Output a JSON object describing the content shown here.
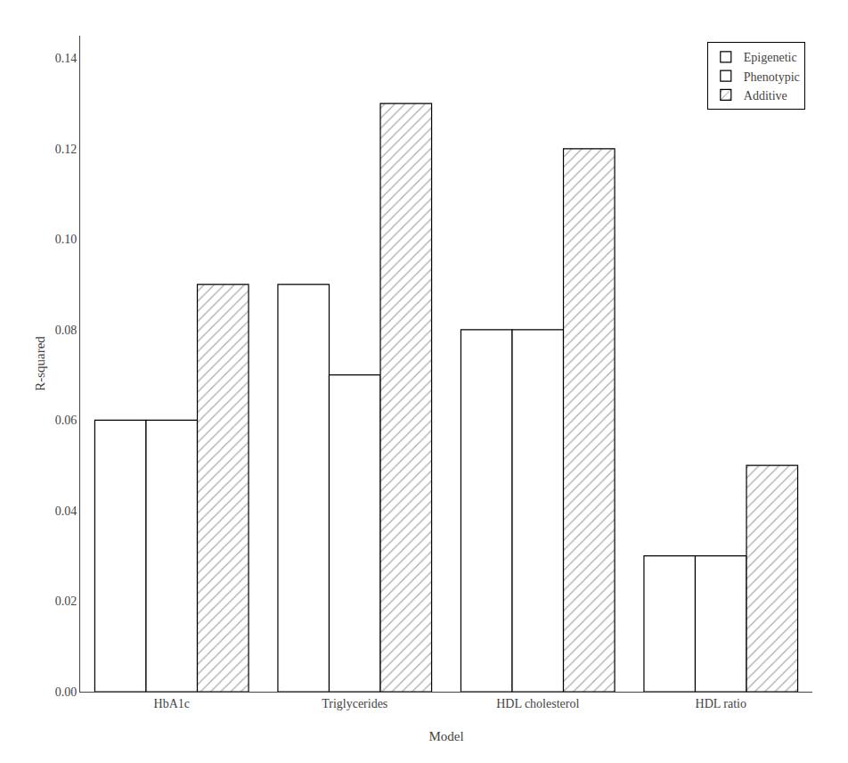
{
  "chart_data": {
    "type": "bar",
    "xlabel": "Model",
    "ylabel": "R-squared",
    "categories": [
      "HbA1c",
      "Triglycerides",
      "HDL cholesterol",
      "HDL ratio"
    ],
    "series": [
      {
        "name": "Epigenetic",
        "color": "#ffffff",
        "values": [
          0.06,
          0.09,
          0.08,
          0.03
        ]
      },
      {
        "name": "Phenotypic",
        "color": "#ffffff",
        "values": [
          0.06,
          0.07,
          0.08,
          0.03
        ]
      },
      {
        "name": "Additive",
        "color": "#ffffff",
        "values": [
          0.09,
          0.13,
          0.12,
          0.05
        ]
      }
    ],
    "ylim": [
      0.0,
      0.145
    ],
    "yticks": [
      {
        "value": 0.0,
        "label": "0.00"
      },
      0.02,
      0.04,
      0.06,
      0.08,
      {
        "value": 0.1,
        "label": "0.10"
      },
      0.12,
      0.14
    ],
    "grid": false,
    "legend": "upper right"
  }
}
